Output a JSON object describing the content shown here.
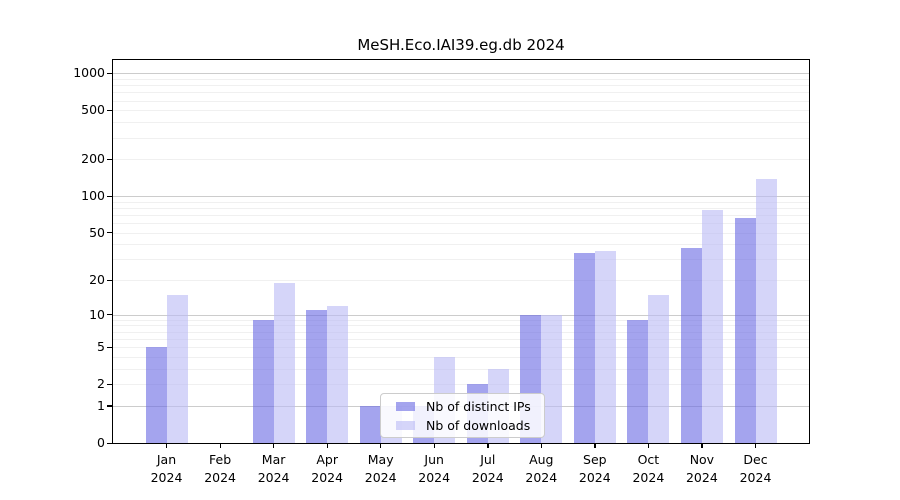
{
  "title": "MeSH.Eco.IAI39.eg.db 2024",
  "chart_data": {
    "type": "bar",
    "yscale": "log1p",
    "ylim": [
      0,
      1284
    ],
    "y_ticks": [
      1000,
      500,
      200,
      100,
      50,
      20,
      10,
      5,
      2,
      1,
      0
    ],
    "grid": "major gray at powers of 10, faint minors at 2-9 per decade",
    "legend_position": "inside lower-center of axes",
    "year": "2024",
    "categories": [
      "Jan",
      "Feb",
      "Mar",
      "Apr",
      "May",
      "Jun",
      "Jul",
      "Aug",
      "Sep",
      "Oct",
      "Nov",
      "Dec"
    ],
    "series": [
      {
        "name": "Nb of distinct IPs",
        "color": "rgba(103,103,227,0.6)",
        "values": [
          5,
          0,
          9,
          11,
          1,
          1,
          2,
          10,
          34,
          9,
          37,
          66
        ]
      },
      {
        "name": "Nb of downloads",
        "color": "rgba(185,185,245,0.6)",
        "values": [
          15,
          0,
          19,
          12,
          1,
          4,
          3,
          10,
          35,
          15,
          77,
          138
        ]
      }
    ]
  },
  "colors": {
    "grid_major": "#cccccc",
    "grid_minor": "#f0f0f0",
    "spine": "#000000"
  }
}
